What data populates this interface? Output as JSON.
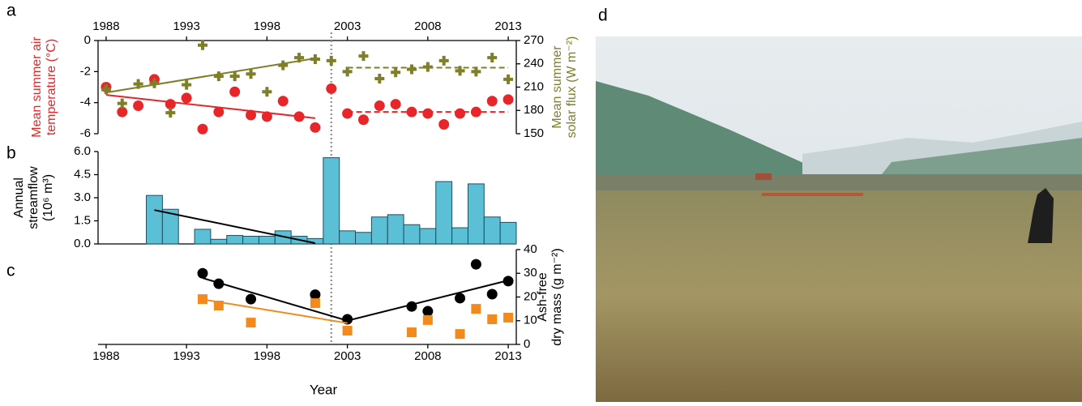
{
  "chart_data": [
    {
      "type": "scatter",
      "panel": "a",
      "ylabel": [
        "Mean summer air",
        "temperature (°C)"
      ],
      "ylabel_color": "#e8262a",
      "y2label": [
        "Mean summer",
        "solar flux (W m⁻²)"
      ],
      "y2label_color": "#7f7f2a",
      "xlim": [
        1987.5,
        2013.5
      ],
      "xticks": [
        1988,
        1993,
        1998,
        2003,
        2008,
        2013
      ],
      "xticks_position": "top",
      "ylim": [
        -6,
        0
      ],
      "yticks": [
        0,
        -2,
        -4,
        -6
      ],
      "y2lim": [
        150,
        270
      ],
      "y2ticks": [
        150,
        180,
        210,
        240,
        270
      ],
      "vline_x": 2002,
      "series": [
        {
          "name": "Mean summer air temperature",
          "color": "#e8262a",
          "marker": "circle",
          "axis": "y",
          "x": [
            1988,
            1989,
            1990,
            1991,
            1992,
            1993,
            1994,
            1995,
            1996,
            1997,
            1998,
            1999,
            2000,
            2001,
            2002,
            2003,
            2004,
            2005,
            2006,
            2007,
            2008,
            2009,
            2010,
            2011,
            2012,
            2013
          ],
          "values": [
            -3.0,
            -4.6,
            -4.2,
            -2.5,
            -4.1,
            -3.7,
            -5.7,
            -4.6,
            -3.3,
            -4.8,
            -4.9,
            -3.9,
            -4.9,
            -5.6,
            -3.1,
            -4.7,
            -5.1,
            -4.2,
            -4.1,
            -4.6,
            -4.7,
            -5.4,
            -4.7,
            -4.6,
            -3.9,
            -3.8
          ]
        },
        {
          "name": "Mean summer solar flux",
          "color": "#7f7f2a",
          "marker": "cross",
          "axis": "y2",
          "x": [
            1988,
            1989,
            1990,
            1991,
            1992,
            1993,
            1994,
            1995,
            1996,
            1997,
            1998,
            1999,
            2000,
            2001,
            2002,
            2003,
            2004,
            2005,
            2006,
            2007,
            2008,
            2009,
            2010,
            2011,
            2012,
            2013
          ],
          "values": [
            207,
            189,
            214,
            215,
            177,
            213,
            264,
            224,
            224,
            227,
            204,
            238,
            248,
            246,
            244,
            230,
            250,
            221,
            229,
            233,
            236,
            244,
            231,
            230,
            248,
            220
          ]
        }
      ],
      "trends": [
        {
          "color": "#e8262a",
          "dashed": false,
          "axis": "y",
          "x": [
            1988,
            2001
          ],
          "values": [
            -3.5,
            -5.0
          ]
        },
        {
          "color": "#e8262a",
          "dashed": true,
          "axis": "y",
          "x": [
            2003,
            2013
          ],
          "values": [
            -4.6,
            -4.6
          ]
        },
        {
          "color": "#7f7f2a",
          "dashed": false,
          "axis": "y2",
          "x": [
            1988,
            2001
          ],
          "values": [
            203,
            247
          ]
        },
        {
          "color": "#7f7f2a",
          "dashed": true,
          "axis": "y2",
          "x": [
            2003,
            2013
          ],
          "values": [
            235,
            235
          ]
        }
      ]
    },
    {
      "type": "bar",
      "panel": "b",
      "ylabel": [
        "Annual",
        "streamflow",
        "(10⁶ m³)"
      ],
      "ylabel_color": "#000000",
      "xlim": [
        1987.5,
        2013.5
      ],
      "ylim": [
        0,
        6
      ],
      "yticks": [
        {
          "value": 0,
          "label": "0.0"
        },
        {
          "value": 1.5,
          "label": "1.5"
        },
        {
          "value": 3,
          "label": "3.0"
        },
        {
          "value": 4.5,
          "label": "4.5"
        },
        {
          "value": 6,
          "label": "6.0"
        }
      ],
      "series": [
        {
          "name": "Annual streamflow",
          "color": "#5bc0d6",
          "marker": "bar",
          "axis": "y",
          "x": [
            1991,
            1992,
            1993,
            1994,
            1995,
            1996,
            1997,
            1998,
            1999,
            2000,
            2001,
            2002,
            2003,
            2004,
            2005,
            2006,
            2007,
            2008,
            2009,
            2010,
            2011,
            2012,
            2013
          ],
          "values": [
            3.15,
            2.25,
            null,
            0.95,
            0.3,
            0.55,
            0.5,
            0.5,
            0.85,
            0.5,
            0.35,
            5.6,
            0.85,
            0.75,
            1.75,
            1.9,
            1.25,
            1.0,
            4.05,
            1.05,
            3.9,
            1.75,
            1.4
          ]
        }
      ],
      "trends": [
        {
          "color": "#000000",
          "dashed": false,
          "axis": "y",
          "x": [
            1991,
            2001
          ],
          "values": [
            2.2,
            0.05
          ]
        }
      ]
    },
    {
      "type": "scatter",
      "panel": "c",
      "xlabel": "Year",
      "y2label": [
        "Ash-free",
        "dry mass (g m⁻²)"
      ],
      "y2label_color": "#000000",
      "xlim": [
        1987.5,
        2013.5
      ],
      "xticks": [
        1988,
        1993,
        1998,
        2003,
        2008,
        2013
      ],
      "xticks_position": "bottom",
      "y2lim": [
        0,
        40
      ],
      "y2ticks": [
        0,
        10,
        20,
        30,
        40
      ],
      "series": [
        {
          "name": "Ash-free dry mass (black)",
          "color": "#000000",
          "marker": "circle",
          "axis": "y2",
          "x": [
            1994,
            1995,
            1997,
            2001,
            2003,
            2007,
            2008,
            2010,
            2011,
            2012,
            2013
          ],
          "values": [
            30,
            25.6,
            19.1,
            21,
            10.6,
            16,
            14,
            19.5,
            33.8,
            21.2,
            26.7
          ]
        },
        {
          "name": "Ash-free dry mass (orange)",
          "color": "#f28a1e",
          "marker": "square",
          "axis": "y2",
          "x": [
            1994,
            1995,
            1997,
            2001,
            2003,
            2007,
            2008,
            2010,
            2011,
            2012,
            2013
          ],
          "values": [
            19.1,
            16.4,
            9.2,
            17.4,
            5.8,
            5.1,
            10.3,
            4.4,
            15,
            10.6,
            11.3
          ]
        }
      ],
      "trends": [
        {
          "color": "#000000",
          "dashed": false,
          "axis": "y2",
          "x": [
            1994,
            2003,
            2013
          ],
          "values": [
            28,
            10,
            27
          ]
        },
        {
          "color": "#f28a1e",
          "dashed": false,
          "axis": "y2",
          "x": [
            1994,
            2003
          ],
          "values": [
            19,
            9
          ]
        }
      ]
    }
  ],
  "photo_panel": "d"
}
